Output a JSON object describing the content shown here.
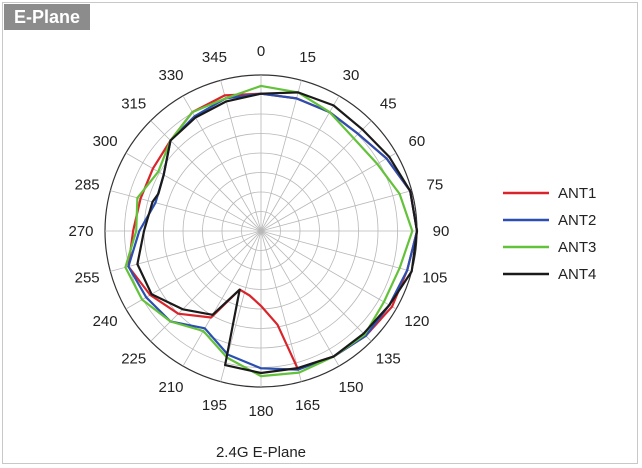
{
  "panel": {
    "tag": "E-Plane"
  },
  "chart_data": {
    "type": "polar-line",
    "caption": "2.4G E-Plane",
    "angle_ticks": [
      "0",
      "15",
      "30",
      "45",
      "60",
      "75",
      "90",
      "105",
      "120",
      "135",
      "150",
      "165",
      "180",
      "195",
      "210",
      "225",
      "240",
      "255",
      "270",
      "285",
      "300",
      "315",
      "330",
      "345"
    ],
    "radial_rings": 8,
    "radial_max": 1.0,
    "legend_position": "right",
    "series": [
      {
        "name": "ANT1",
        "color": "#d9242b",
        "angles": [
          0,
          15,
          30,
          45,
          60,
          75,
          90,
          105,
          120,
          135,
          150,
          160,
          165,
          170,
          180,
          190,
          200,
          210,
          225,
          240,
          255,
          270,
          285,
          300,
          315,
          330,
          345
        ],
        "values": [
          0.88,
          0.88,
          0.88,
          0.88,
          0.93,
          0.99,
          1.0,
          0.97,
          0.97,
          0.95,
          0.93,
          0.91,
          0.92,
          0.61,
          0.48,
          0.42,
          0.4,
          0.64,
          0.75,
          0.82,
          0.88,
          0.82,
          0.8,
          0.8,
          0.82,
          0.88,
          0.9
        ]
      },
      {
        "name": "ANT2",
        "color": "#2b4fb0",
        "angles": [
          0,
          15,
          30,
          45,
          60,
          75,
          90,
          105,
          120,
          135,
          150,
          165,
          180,
          195,
          210,
          225,
          240,
          255,
          270,
          285,
          300,
          315,
          330,
          345
        ],
        "values": [
          0.88,
          0.88,
          0.88,
          0.88,
          0.93,
          0.99,
          1.0,
          0.97,
          0.95,
          0.95,
          0.93,
          0.92,
          0.88,
          0.82,
          0.72,
          0.82,
          0.85,
          0.88,
          0.78,
          0.7,
          0.72,
          0.82,
          0.85,
          0.88
        ]
      },
      {
        "name": "ANT3",
        "color": "#63c23a",
        "angles": [
          0,
          15,
          30,
          45,
          60,
          75,
          90,
          105,
          120,
          135,
          150,
          165,
          180,
          195,
          210,
          225,
          240,
          255,
          270,
          285,
          300,
          315,
          330,
          345
        ],
        "values": [
          0.93,
          0.92,
          0.88,
          0.84,
          0.86,
          0.92,
          0.97,
          0.92,
          0.91,
          0.94,
          0.93,
          0.94,
          0.93,
          0.84,
          0.74,
          0.82,
          0.88,
          0.9,
          0.8,
          0.82,
          0.76,
          0.82,
          0.88,
          0.88
        ]
      },
      {
        "name": "ANT4",
        "color": "#1a1a1a",
        "angles": [
          0,
          15,
          30,
          45,
          60,
          75,
          90,
          105,
          120,
          135,
          150,
          165,
          180,
          190,
          195,
          200,
          210,
          225,
          240,
          255,
          270,
          285,
          290,
          300,
          315,
          330,
          345
        ],
        "values": [
          0.88,
          0.92,
          0.93,
          0.92,
          0.95,
          0.99,
          1.0,
          1.0,
          0.95,
          0.93,
          0.93,
          0.91,
          0.91,
          0.89,
          0.89,
          0.4,
          0.62,
          0.71,
          0.81,
          0.82,
          0.75,
          0.72,
          0.7,
          0.72,
          0.82,
          0.84,
          0.86
        ]
      }
    ]
  }
}
